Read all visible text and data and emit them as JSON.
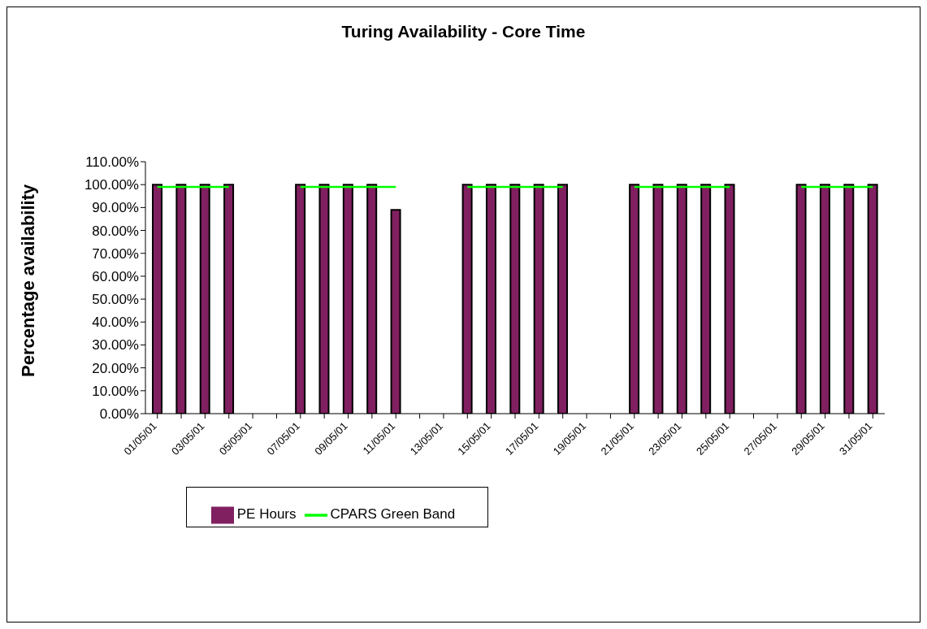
{
  "chart_data": {
    "type": "bar",
    "title": "Turing Availability - Core Time",
    "ylabel": "Percentage availability",
    "categories": [
      "01/05/01",
      null,
      "03/05/01",
      null,
      "05/05/01",
      null,
      "07/05/01",
      null,
      "09/05/01",
      null,
      "11/05/01",
      null,
      "13/05/01",
      null,
      "15/05/01",
      null,
      "17/05/01",
      null,
      "19/05/01",
      null,
      "21/05/01",
      null,
      "23/05/01",
      null,
      "25/05/01",
      null,
      "27/05/01",
      null,
      "29/05/01",
      null,
      "31/05/01"
    ],
    "series": [
      {
        "name": "PE Hours",
        "color": "#802060",
        "values": [
          100,
          100,
          100,
          100,
          null,
          null,
          100,
          100,
          100,
          100,
          89,
          null,
          null,
          100,
          100,
          100,
          100,
          100,
          null,
          null,
          100,
          100,
          100,
          100,
          100,
          null,
          null,
          100,
          100,
          100,
          100
        ]
      },
      {
        "name": "CPARS Green Band",
        "type": "line",
        "color": "#00ff00",
        "values": [
          99,
          99,
          99,
          99,
          null,
          null,
          99,
          99,
          99,
          99,
          99,
          null,
          null,
          99,
          99,
          99,
          99,
          99,
          null,
          null,
          99,
          99,
          99,
          99,
          99,
          null,
          null,
          99,
          99,
          99,
          99
        ]
      }
    ],
    "ylim": [
      0,
      110
    ],
    "yticks": [
      {
        "value": 0,
        "label": "0.00%"
      },
      {
        "value": 10,
        "label": "10.00%"
      },
      {
        "value": 20,
        "label": "20.00%"
      },
      {
        "value": 30,
        "label": "30.00%"
      },
      {
        "value": 40,
        "label": "40.00%"
      },
      {
        "value": 50,
        "label": "50.00%"
      },
      {
        "value": 60,
        "label": "60.00%"
      },
      {
        "value": 70,
        "label": "70.00%"
      },
      {
        "value": 80,
        "label": "80.00%"
      },
      {
        "value": 90,
        "label": "90.00%"
      },
      {
        "value": 100,
        "label": "100.00%"
      },
      {
        "value": 110,
        "label": "110.00%"
      }
    ],
    "grid": false,
    "legend": "bottom",
    "marker": "none"
  }
}
